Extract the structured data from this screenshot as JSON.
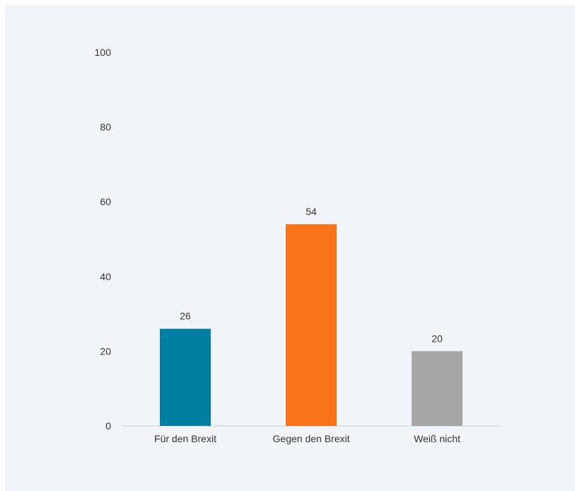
{
  "chart_data": {
    "type": "bar",
    "title": "",
    "xlabel": "",
    "ylabel": "",
    "ylim": [
      0,
      100
    ],
    "yticks": [
      0,
      20,
      40,
      60,
      80,
      100
    ],
    "grid": false,
    "categories": [
      "Für den Brexit",
      "Gegen den Brexit",
      "Weiß nicht"
    ],
    "values": [
      26,
      54,
      20
    ],
    "value_labels": [
      "26",
      "54",
      "20"
    ],
    "colors": [
      "#007fa3",
      "#fa7319",
      "#a6a6a6"
    ]
  }
}
